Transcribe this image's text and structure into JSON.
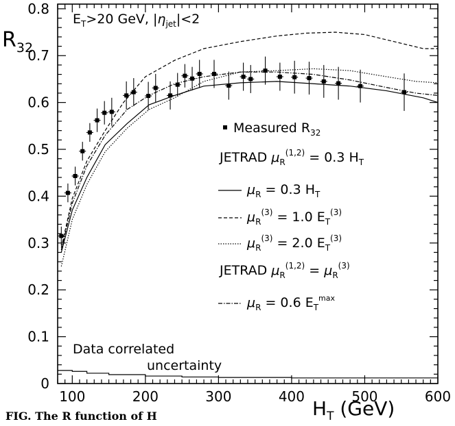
{
  "chart_data": {
    "type": "line",
    "title": "",
    "cut_label": {
      "pre": "E",
      "pre_sub": "T",
      "mid": ">20 GeV, |",
      "eta": "η",
      "eta_sub": "jet",
      "post": "|<2"
    },
    "xlabel": {
      "main": "H",
      "sub": "T",
      "rest": " (GeV)"
    },
    "ylabel": {
      "main": "R",
      "sub": "32"
    },
    "xlim": [
      80,
      600
    ],
    "ylim": [
      0,
      0.81
    ],
    "x_ticks": [
      100,
      200,
      300,
      400,
      500,
      600
    ],
    "y_ticks": [
      0,
      0.1,
      0.2,
      0.3,
      0.4,
      0.5,
      0.6,
      0.7,
      0.8
    ],
    "x_tick_labels": [
      "100",
      "200",
      "300",
      "400",
      "500",
      "600"
    ],
    "y_tick_labels": [
      "0",
      "0.1",
      "0.2",
      "0.3",
      "0.4",
      "0.5",
      "0.6",
      "0.7",
      "0.8"
    ],
    "grid": false,
    "legend_position": "right",
    "series": [
      {
        "name": "Measured R32",
        "style": "points",
        "x": [
          85,
          94,
          104,
          114,
          124,
          134,
          144,
          154,
          174,
          184,
          204,
          214,
          234,
          244,
          254,
          264,
          274,
          294,
          314,
          334,
          344,
          364,
          384,
          404,
          424,
          444,
          464,
          494,
          554
        ],
        "y": [
          0.315,
          0.407,
          0.443,
          0.496,
          0.536,
          0.562,
          0.578,
          0.58,
          0.615,
          0.622,
          0.614,
          0.631,
          0.615,
          0.638,
          0.657,
          0.651,
          0.661,
          0.661,
          0.636,
          0.655,
          0.65,
          0.668,
          0.655,
          0.654,
          0.652,
          0.645,
          0.641,
          0.635,
          0.622
        ],
        "err": [
          0.02,
          0.02,
          0.02,
          0.02,
          0.02,
          0.025,
          0.025,
          0.03,
          0.03,
          0.03,
          0.03,
          0.03,
          0.03,
          0.025,
          0.025,
          0.025,
          0.03,
          0.03,
          0.03,
          0.03,
          0.03,
          0.03,
          0.03,
          0.035,
          0.035,
          0.035,
          0.035,
          0.035,
          0.04
        ]
      },
      {
        "name": "μR = 0.3 HT",
        "style": "solid",
        "x": [
          85,
          100,
          120,
          145,
          175,
          205,
          240,
          280,
          330,
          380,
          430,
          480,
          530,
          580,
          600
        ],
        "y": [
          0.28,
          0.37,
          0.44,
          0.51,
          0.555,
          0.595,
          0.615,
          0.635,
          0.642,
          0.645,
          0.64,
          0.635,
          0.625,
          0.61,
          0.6
        ]
      },
      {
        "name": "μR(3) = 1.0 ET(3)",
        "style": "dashed",
        "x": [
          85,
          100,
          120,
          145,
          170,
          200,
          240,
          280,
          330,
          380,
          420,
          460,
          500,
          540,
          580,
          600
        ],
        "y": [
          0.29,
          0.395,
          0.475,
          0.54,
          0.6,
          0.655,
          0.69,
          0.715,
          0.73,
          0.742,
          0.748,
          0.75,
          0.745,
          0.73,
          0.715,
          0.715
        ]
      },
      {
        "name": "μR(3) = 2.0 ET(3)",
        "style": "dotted",
        "x": [
          85,
          100,
          120,
          145,
          175,
          205,
          240,
          280,
          330,
          380,
          430,
          480,
          530,
          570,
          600
        ],
        "y": [
          0.25,
          0.35,
          0.425,
          0.495,
          0.545,
          0.585,
          0.61,
          0.645,
          0.665,
          0.668,
          0.672,
          0.668,
          0.655,
          0.645,
          0.642
        ]
      },
      {
        "name": "μR = 0.6 ETmax",
        "style": "dashdot",
        "x": [
          85,
          100,
          120,
          145,
          175,
          205,
          240,
          280,
          330,
          380,
          430,
          480,
          530,
          570,
          600
        ],
        "y": [
          0.285,
          0.385,
          0.465,
          0.53,
          0.585,
          0.615,
          0.64,
          0.655,
          0.665,
          0.665,
          0.66,
          0.648,
          0.632,
          0.62,
          0.615
        ]
      },
      {
        "name": "Data correlated uncertainty",
        "style": "step",
        "x": [
          80,
          100,
          120,
          150,
          200,
          250,
          300,
          400,
          500,
          600
        ],
        "y": [
          0.028,
          0.026,
          0.022,
          0.019,
          0.016,
          0.014,
          0.013,
          0.012,
          0.012,
          0.012
        ]
      }
    ],
    "legend": {
      "measured": {
        "text": "Measured R",
        "sub": "32"
      },
      "jetrad1": {
        "name": "JETRAD ",
        "mu": "μ",
        "mu_sub": "R",
        "sup": "(1,2)",
        "rest": " = 0.3 H",
        "rest_sub": "T"
      },
      "solid": {
        "mu": "μ",
        "mu_sub": "R",
        "rest": " = 0.3 H",
        "rest_sub": "T"
      },
      "dashed": {
        "mu": "μ",
        "mu_sub": "R",
        "sup": "(3)",
        "rest": " = 1.0 E",
        "rest_sub": "T",
        "rest_sup": "(3)"
      },
      "dotted": {
        "mu": "μ",
        "mu_sub": "R",
        "sup": "(3)",
        "rest": " = 2.0 E",
        "rest_sub": "T",
        "rest_sup": "(3)"
      },
      "jetrad2": {
        "name": "JETRAD ",
        "mu": "μ",
        "mu_sub": "R",
        "sup": "(1,2)",
        "rest": " = ",
        "mu2": "μ",
        "mu2_sub": "R",
        "mu2_sup": "(3)"
      },
      "dashdot": {
        "mu": "μ",
        "mu_sub": "R",
        "rest": " = 0.6 E",
        "rest_sub": "T",
        "rest_sup": "max"
      }
    },
    "annotation": {
      "line1": "Data correlated",
      "line2": "uncertainty"
    }
  },
  "caption": "FIG.     The        R     function of H"
}
